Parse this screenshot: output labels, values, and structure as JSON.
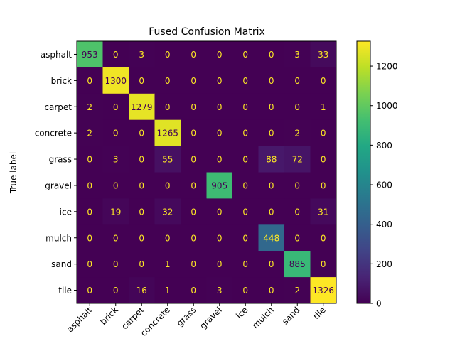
{
  "chart_data": {
    "type": "heatmap",
    "title": "Fused Confusion Matrix",
    "ylabel": "True label",
    "xlabel": "",
    "labels": [
      "asphalt",
      "brick",
      "carpet",
      "concrete",
      "grass",
      "gravel",
      "ice",
      "mulch",
      "sand",
      "tile"
    ],
    "matrix": [
      [
        953,
        0,
        3,
        0,
        0,
        0,
        0,
        0,
        3,
        33
      ],
      [
        0,
        1300,
        0,
        0,
        0,
        0,
        0,
        0,
        0,
        0
      ],
      [
        2,
        0,
        1279,
        0,
        0,
        0,
        0,
        0,
        0,
        1
      ],
      [
        2,
        0,
        0,
        1265,
        0,
        0,
        0,
        0,
        2,
        0
      ],
      [
        0,
        3,
        0,
        55,
        0,
        0,
        0,
        88,
        72,
        0
      ],
      [
        0,
        0,
        0,
        0,
        0,
        905,
        0,
        0,
        0,
        0
      ],
      [
        0,
        19,
        0,
        32,
        0,
        0,
        0,
        0,
        0,
        31
      ],
      [
        0,
        0,
        0,
        0,
        0,
        0,
        0,
        448,
        0,
        0
      ],
      [
        0,
        0,
        0,
        1,
        0,
        0,
        0,
        0,
        885,
        0
      ],
      [
        0,
        0,
        16,
        1,
        0,
        3,
        0,
        0,
        2,
        1326
      ]
    ],
    "colormap": "viridis",
    "vmin": 0,
    "vmax": 1326,
    "colorbar_ticks": [
      0,
      200,
      400,
      600,
      800,
      1000,
      1200
    ],
    "text_color_low": "#fde725",
    "text_color_high": "#440154"
  }
}
